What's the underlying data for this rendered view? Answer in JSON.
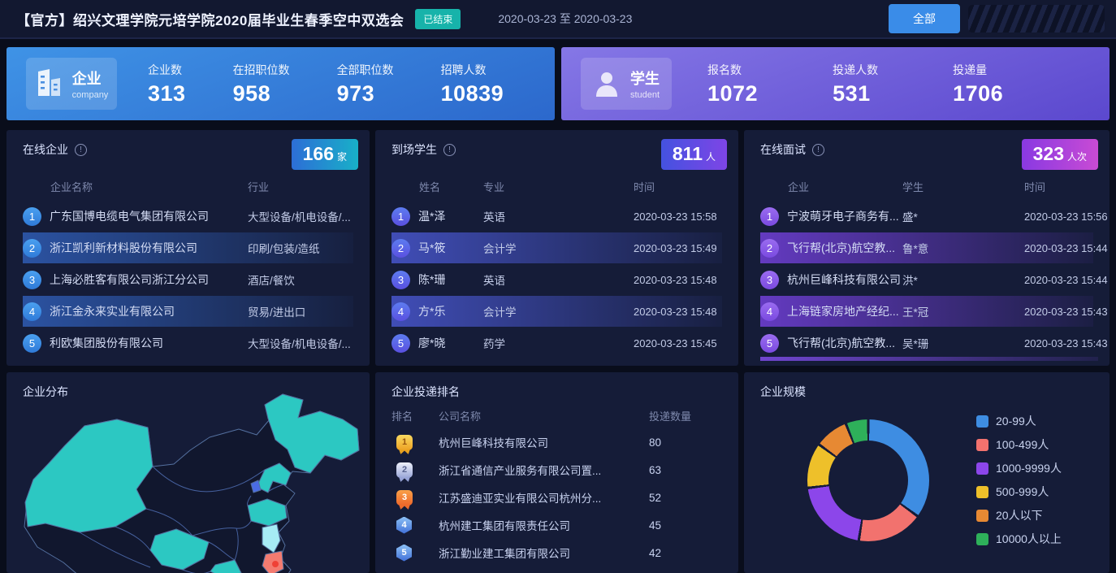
{
  "header": {
    "title": "【官方】绍兴文理学院元培学院2020届毕业生春季空中双选会",
    "status_badge": "已结束",
    "date_range": "2020-03-23 至 2020-03-23",
    "filter_button": "全部"
  },
  "summary_cards": {
    "company": {
      "label": "企业",
      "label_en": "company",
      "stats": [
        {
          "label": "企业数",
          "value": "313"
        },
        {
          "label": "在招职位数",
          "value": "958"
        },
        {
          "label": "全部职位数",
          "value": "973"
        },
        {
          "label": "招聘人数",
          "value": "10839"
        }
      ]
    },
    "student": {
      "label": "学生",
      "label_en": "student",
      "stats": [
        {
          "label": "报名数",
          "value": "1072"
        },
        {
          "label": "投递人数",
          "value": "531"
        },
        {
          "label": "投递量",
          "value": "1706"
        }
      ]
    }
  },
  "panels": {
    "online_companies": {
      "title": "在线企业",
      "badge_value": "166",
      "badge_unit": "家",
      "columns": [
        "企业名称",
        "行业"
      ],
      "rows": [
        {
          "rank": "1",
          "name": "广东国博电缆电气集团有限公司",
          "industry": "大型设备/机电设备/..."
        },
        {
          "rank": "2",
          "name": "浙江凯利新材料股份有限公司",
          "industry": "印刷/包装/造纸"
        },
        {
          "rank": "3",
          "name": "上海必胜客有限公司浙江分公司",
          "industry": "酒店/餐饮"
        },
        {
          "rank": "4",
          "name": "浙江金永来实业有限公司",
          "industry": "贸易/进出口"
        },
        {
          "rank": "5",
          "name": "利欧集团股份有限公司",
          "industry": "大型设备/机电设备/..."
        }
      ]
    },
    "attending_students": {
      "title": "到场学生",
      "badge_value": "811",
      "badge_unit": "人",
      "columns": [
        "姓名",
        "专业",
        "时间"
      ],
      "rows": [
        {
          "rank": "1",
          "name": "温*泽",
          "major": "英语",
          "time": "2020-03-23 15:58"
        },
        {
          "rank": "2",
          "name": "马*筱",
          "major": "会计学",
          "time": "2020-03-23 15:49"
        },
        {
          "rank": "3",
          "name": "陈*珊",
          "major": "英语",
          "time": "2020-03-23 15:48"
        },
        {
          "rank": "4",
          "name": "方*乐",
          "major": "会计学",
          "time": "2020-03-23 15:48"
        },
        {
          "rank": "5",
          "name": "廖*晓",
          "major": "药学",
          "time": "2020-03-23 15:45"
        }
      ]
    },
    "online_interviews": {
      "title": "在线面试",
      "badge_value": "323",
      "badge_unit": "人次",
      "columns": [
        "企业",
        "学生",
        "时间"
      ],
      "rows": [
        {
          "rank": "1",
          "company": "宁波萌牙电子商务有...",
          "student": "盛*",
          "time": "2020-03-23 15:56"
        },
        {
          "rank": "2",
          "company": "飞行帮(北京)航空教...",
          "student": "鲁*意",
          "time": "2020-03-23 15:44"
        },
        {
          "rank": "3",
          "company": "杭州巨峰科技有限公司",
          "student": "洪*",
          "time": "2020-03-23 15:44"
        },
        {
          "rank": "4",
          "company": "上海链家房地产经纪...",
          "student": "王*冠",
          "time": "2020-03-23 15:43"
        },
        {
          "rank": "5",
          "company": "飞行帮(北京)航空教...",
          "student": "吴*珊",
          "time": "2020-03-23 15:43"
        }
      ]
    },
    "company_distribution": {
      "title": "企业分布"
    },
    "delivery_ranking": {
      "title": "企业投递排名",
      "columns": [
        "排名",
        "公司名称",
        "投递数量"
      ],
      "rows": [
        {
          "rank": "1",
          "name": "杭州巨峰科技有限公司",
          "count": "80"
        },
        {
          "rank": "2",
          "name": "浙江省通信产业服务有限公司置...",
          "count": "63"
        },
        {
          "rank": "3",
          "name": "江苏盛迪亚实业有限公司杭州分...",
          "count": "52"
        },
        {
          "rank": "4",
          "name": "杭州建工集团有限责任公司",
          "count": "45"
        },
        {
          "rank": "5",
          "name": "浙江勤业建工集团有限公司",
          "count": "42"
        }
      ]
    },
    "company_scale": {
      "title": "企业规模"
    }
  },
  "chart_data": [
    {
      "type": "pie",
      "donut": true,
      "title": "企业规模",
      "legend_position": "right",
      "note": "no numeric labels shown; percentages estimated from arc angles, clockwise from top",
      "segments": [
        {
          "label": "20-99人",
          "color": "#3e8de2",
          "pct": 35
        },
        {
          "label": "100-499人",
          "color": "#f2726e",
          "pct": 17.5
        },
        {
          "label": "1000-9999人",
          "color": "#8c46ea",
          "pct": 20.5
        },
        {
          "label": "500-999人",
          "color": "#eec02a",
          "pct": 12
        },
        {
          "label": "20人以下",
          "color": "#e78933",
          "pct": 9
        },
        {
          "label": "10000人以上",
          "color": "#2eb05a",
          "pct": 6
        }
      ]
    },
    {
      "type": "heatmap",
      "title": "企业分布",
      "map": "china",
      "note": "choropleth of China; no numeric values shown, only region fill categories",
      "palette": {
        "teal": "#2cc8c2",
        "cyan": "#a6ecf5",
        "red": "#f37b70",
        "blue": "#4a6ce4",
        "land": "#11172e",
        "marker": "#ef4136"
      },
      "regions": [
        {
          "name": "新疆",
          "category": "teal"
        },
        {
          "name": "黑龙江",
          "category": "teal"
        },
        {
          "name": "辽宁",
          "category": "teal"
        },
        {
          "name": "山东",
          "category": "teal"
        },
        {
          "name": "四川",
          "category": "teal"
        },
        {
          "name": "贵州",
          "category": "teal"
        },
        {
          "name": "江苏",
          "category": "cyan"
        },
        {
          "name": "浙江",
          "category": "red"
        },
        {
          "name": "北京",
          "category": "blue"
        }
      ]
    }
  ],
  "colors": {
    "accent_blue": "#3a8ce8",
    "status_teal": "#17b3aa",
    "company_card": "#2c68cc",
    "student_card": "#5b48ce",
    "panel_bg": "#151c38",
    "page_bg": "#090d1b"
  }
}
